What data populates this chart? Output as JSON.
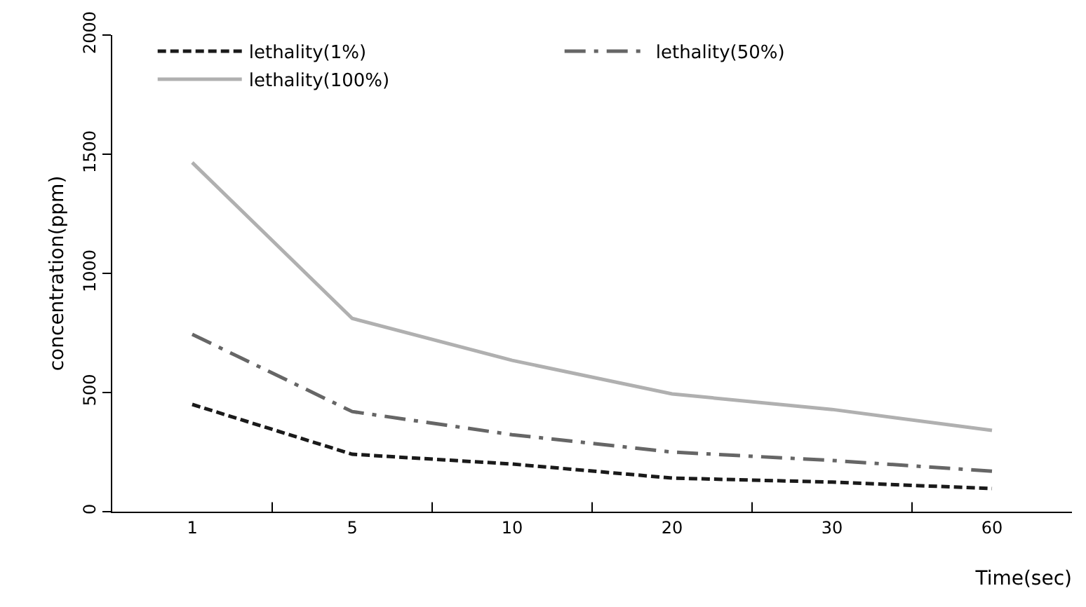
{
  "chart_data": {
    "type": "line",
    "xlabel": "Time(sec)",
    "ylabel": "concentration(ppm)",
    "categories": [
      "1",
      "5",
      "10",
      "20",
      "30",
      "60"
    ],
    "series": [
      {
        "name": "lethality(1%)",
        "color": "#1a1a1a",
        "line_style": "dashed",
        "values": [
          450,
          241,
          200,
          141,
          124,
          97
        ]
      },
      {
        "name": "lethality(50%)",
        "color": "#666666",
        "line_style": "dashdot",
        "values": [
          744,
          420,
          323,
          250,
          215,
          170
        ]
      },
      {
        "name": "lethality(100%)",
        "color": "#b0b0b0",
        "line_style": "solid",
        "values": [
          1465,
          811,
          635,
          494,
          429,
          341
        ]
      }
    ],
    "ylim": [
      0,
      2000
    ],
    "yticks": [
      0,
      500,
      1000,
      1500,
      2000
    ],
    "grid": false,
    "legend": "top",
    "marker": "none"
  }
}
